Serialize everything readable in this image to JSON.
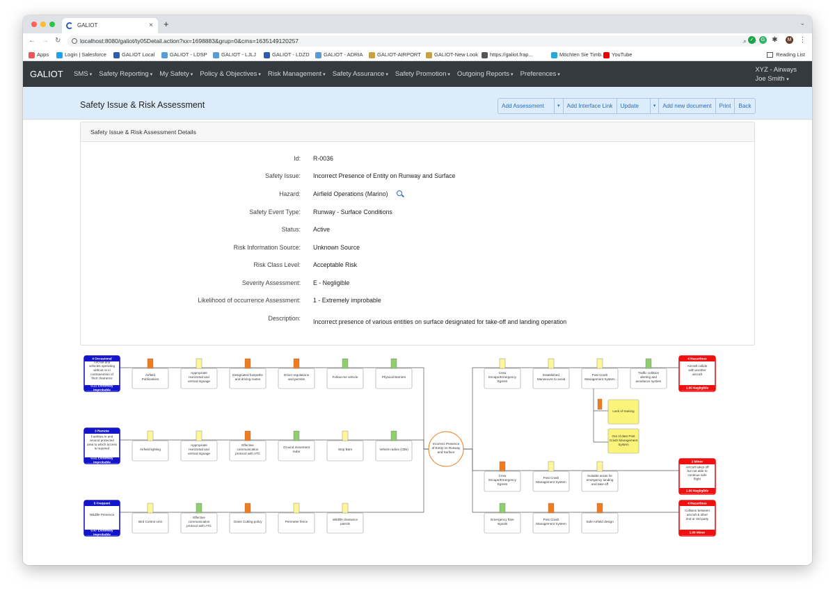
{
  "browser": {
    "tab_title": "GALIOT",
    "url": "localhost:8080/galiot/ty05Detail.action?xx=1698883&grup=0&cms=1635149120257",
    "bookmarks": [
      "Apps",
      "Login | Salesforce",
      "GALIOT Local",
      "GALIOT - LDSP",
      "GALIOT - LJLJ",
      "GALIOT - LDZD",
      "GALIOT - ADRIA",
      "GALIOT-AIRPORT",
      "GALIOT-New Look",
      "https://galiot.frap...",
      "Möchten Sie Timb...",
      "YouTube"
    ],
    "reading_list": "Reading List",
    "profile_initial": "M"
  },
  "navbar": {
    "brand": "GALIOT",
    "menu": [
      "SMS",
      "Safety Reporting",
      "My Safety",
      "Policy & Objectives",
      "Risk Management",
      "Safety Assurance",
      "Safety Promotion",
      "Outgoing Reports",
      "Preferences"
    ],
    "org": "XYZ - Airways",
    "user": "Joe Smith"
  },
  "page": {
    "title": "Safety Issue & Risk Assessment",
    "actions": {
      "add_assessment": "Add Assessment",
      "add_interface_link": "Add Interface Link",
      "update": "Update",
      "add_document": "Add new document",
      "print": "Print",
      "back": "Back"
    }
  },
  "details": {
    "card_title": "Safety Issue & Risk Assessment Details",
    "fields": [
      {
        "label": "Id:",
        "value": "R-0036"
      },
      {
        "label": "Safety Issue:",
        "value": "Incorrect Presence of Entity on Runway and Surface"
      },
      {
        "label": "Hazard:",
        "value": "Airfield Operations (Marino)"
      },
      {
        "label": "Safety Event Type:",
        "value": "Runway - Surface Conditions"
      },
      {
        "label": "Status:",
        "value": "Active"
      },
      {
        "label": "Risk Information Source:",
        "value": "Unknown Source"
      },
      {
        "label": "Risk Class Level:",
        "value": "Acceptable Risk"
      },
      {
        "label": "Severity Assessment:",
        "value": "E - Negligible"
      },
      {
        "label": "Likelihood of occurrence Assessment:",
        "value": "1 - Extremely improbable"
      },
      {
        "label": "Description:",
        "value": "Incorrect presence of various entities on surface designated for take-off and landing operation"
      }
    ]
  },
  "bowtie": {
    "colors": {
      "green": "#8fce6f",
      "yellow": "#fdf79a",
      "orange": "#f07c1e",
      "threat": "#1414c8",
      "consequence": "#ee1111",
      "escalation": "#fbf47a"
    },
    "center": "Incorrect Presence of Entity on Runway and Surface",
    "threats": [
      {
        "header": "4 Occasional",
        "text": "Aircraft and vehicles operating without or in contravention of their clearance",
        "footer": "0.21 Extremely Improbable",
        "barriers": [
          {
            "text": "Airfield Publications",
            "c": "orange"
          },
          {
            "text": "Appropriate Horizontal and vertical signage",
            "c": "yellow"
          },
          {
            "text": "Designated footpaths and driving routes",
            "c": "orange"
          },
          {
            "text": "Driver regulations and permits",
            "c": "orange"
          },
          {
            "text": "Follow-me vehicle",
            "c": "green"
          },
          {
            "text": "Physical Barriers",
            "c": "green"
          }
        ]
      },
      {
        "header": "3 Remote",
        "text": "Facilities in and around protected area to which access is required",
        "footer": "0.01 Extremely Improbable",
        "barriers": [
          {
            "text": "Airfield lighting",
            "c": "yellow"
          },
          {
            "text": "Appropriate Horizontal and vertical signage",
            "c": "yellow"
          },
          {
            "text": "Effective communication protocol with ATC",
            "c": "orange"
          },
          {
            "text": "Ground movement radar",
            "c": "green"
          },
          {
            "text": "Stop Bars",
            "c": "yellow"
          },
          {
            "text": "Vehicle radios (CBs)",
            "c": "green"
          }
        ]
      },
      {
        "header": "5 Frequent",
        "text": "Wildlife Presence",
        "footer": "0.47 Extremely Improbable",
        "barriers": [
          {
            "text": "Bird Control Unit",
            "c": "yellow"
          },
          {
            "text": "Effective communication protocol with ATC",
            "c": "green"
          },
          {
            "text": "Grass Cutting policy",
            "c": "orange"
          },
          {
            "text": "Perimeter fence",
            "c": "yellow"
          },
          {
            "text": "Wildlife clearance patrols",
            "c": "yellow"
          }
        ]
      }
    ],
    "consequences": [
      {
        "header": "4 Hazardous",
        "text": "Aircraft collide with another aircraft",
        "footer": "1.00 Negligible",
        "barriers": [
          {
            "text": "Crew Escape/Emergency Egress",
            "c": "yellow"
          },
          {
            "text": "Established Manoeuvre to avoid",
            "c": "yellow"
          },
          {
            "text": "Post Crash Management System",
            "c": "yellow"
          },
          {
            "text": "Traffic collision alerting and avoidance system",
            "c": "green"
          }
        ]
      },
      {
        "header": "2 Minor",
        "text": "Aircraft takes off but not able to continue safe flight",
        "footer": "1.00 Negligible",
        "barriers": [
          {
            "text": "Crew Escape/Emergency Egress",
            "c": "orange"
          },
          {
            "text": "Post Crash Management System",
            "c": "yellow"
          },
          {
            "text": "Suitable areas for emergency landing and take-off",
            "c": "yellow"
          }
        ]
      },
      {
        "header": "4 Hazardous",
        "text": "Collision between aircraft & other 2nd or 3rd party",
        "footer": "1.00 Minor",
        "barriers": [
          {
            "text": "Emergency flare signals",
            "c": "green"
          },
          {
            "text": "Post Crash Management System",
            "c": "orange"
          },
          {
            "text": "Safe Airfield design",
            "c": "orange"
          }
        ]
      }
    ],
    "escalation_factors": [
      {
        "text": "Lack of training"
      },
      {
        "text": "Out of date Post Crash Management System"
      }
    ]
  }
}
